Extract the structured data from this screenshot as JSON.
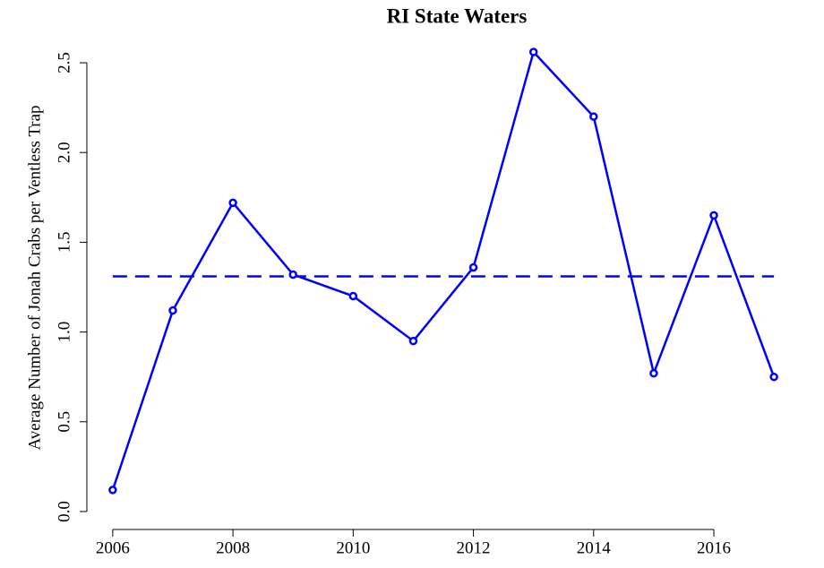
{
  "chart_data": {
    "type": "line",
    "title": "RI State Waters",
    "y_label": "Average Number of Jonah Crabs per Ventless Trap",
    "x": [
      2006,
      2007,
      2008,
      2009,
      2010,
      2011,
      2012,
      2013,
      2014,
      2015,
      2016,
      2017
    ],
    "series": [
      {
        "color": "#0000ff",
        "values": [
          0.12,
          1.12,
          1.72,
          1.32,
          1.2,
          0.95,
          1.36,
          2.56,
          2.2,
          0.77,
          1.65,
          0.75
        ]
      }
    ],
    "reference_line": {
      "value": 1.31,
      "color": "#0000ff",
      "style": "dashed"
    },
    "xlim": [
      2005.57,
      2017.43
    ],
    "xticks": [
      2006,
      2008,
      2010,
      2012,
      2014,
      2016
    ],
    "ylim": [
      -0.1,
      2.65
    ],
    "yticks": [
      {
        "value": 0,
        "label": "0.0"
      },
      0.5,
      {
        "value": 1,
        "label": "1.0"
      },
      1.5,
      {
        "value": 2,
        "label": "2.0"
      },
      2.5
    ],
    "grid": false
  }
}
